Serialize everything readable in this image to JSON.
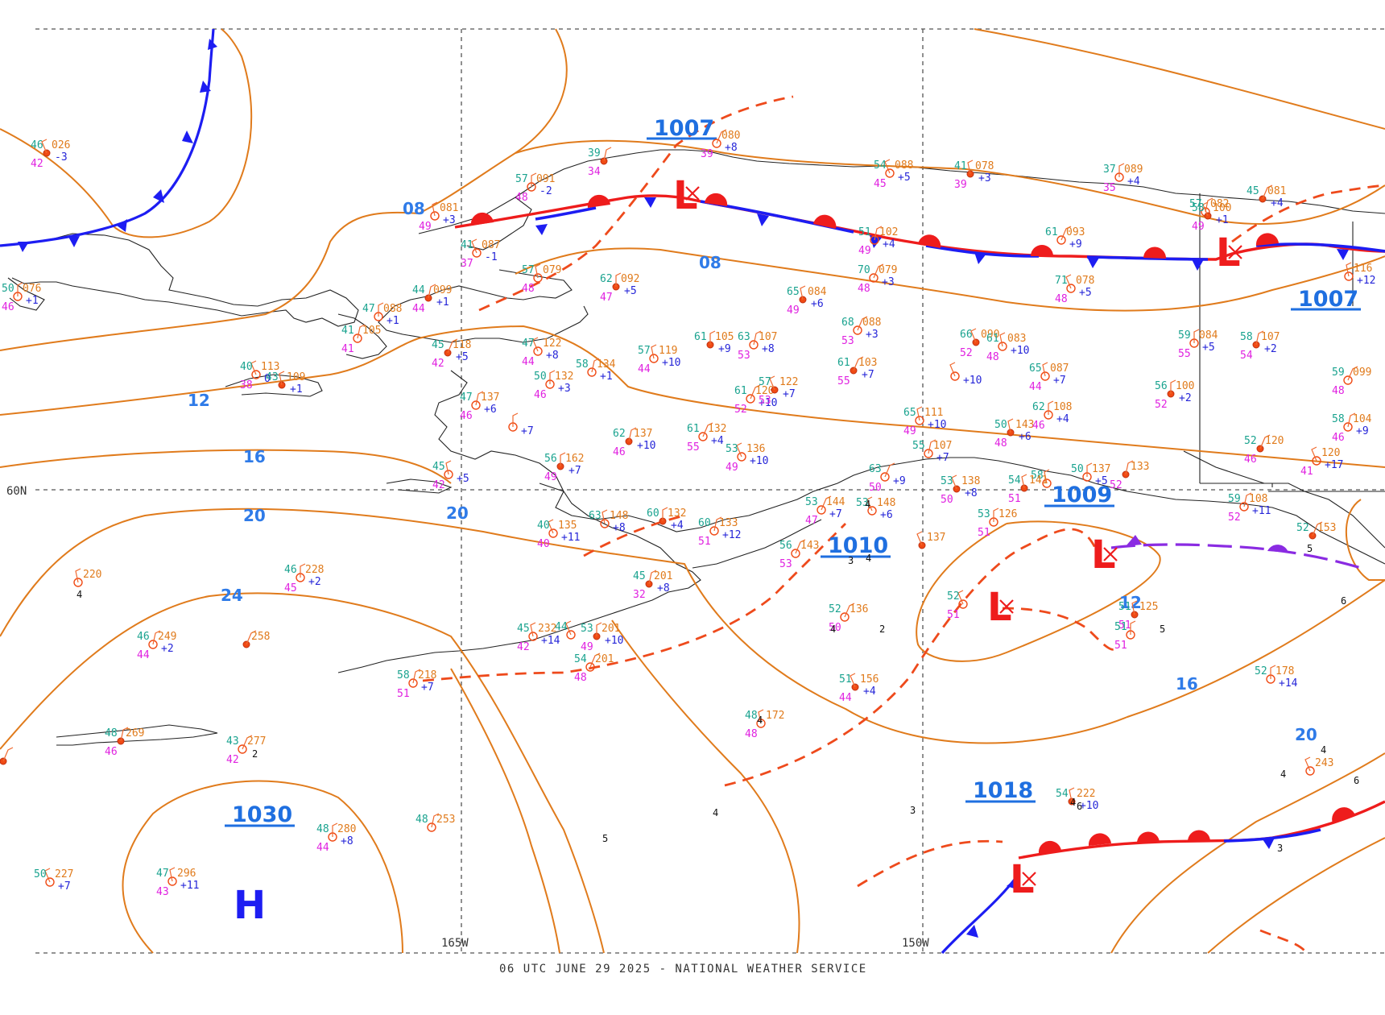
{
  "footer": "06 UTC JUNE 29 2025 - NATIONAL WEATHER SERVICE",
  "axes": {
    "lat_60n": "60N",
    "lon_165w": "165W",
    "lon_150w": "150W"
  },
  "colors": {
    "isobar": "#e07b1c",
    "cold_front": "#1d1df2",
    "warm_front": "#ee1c1c",
    "trough": "#ee4a1c",
    "occluded_front": "#8a2be2",
    "isobar_label": "#2f7be8"
  },
  "isobar_labels": {
    "i08a": "08",
    "i08b": "08",
    "i12a": "12",
    "i12b": "12",
    "i16a": "16",
    "i16b": "16",
    "i20a": "20",
    "i20b": "20",
    "i20c": "20",
    "i24": "24"
  },
  "pressure_centers": {
    "c1007a": "1007",
    "c1007b": "1007",
    "c1009": "1009",
    "c1010": "1010",
    "c1018": "1018",
    "c1030": "1030"
  },
  "highs": {
    "h1": "H"
  },
  "lows": {
    "l1": "L",
    "l2": "L",
    "l3": "L",
    "l4": "L",
    "l5": "L"
  },
  "stations": [
    {
      "t": "46",
      "p": "026",
      "d": "42",
      "c": "-3"
    },
    {
      "t": "",
      "p": "081",
      "d": "49",
      "c": "+3"
    },
    {
      "t": "57",
      "p": "091",
      "d": "48",
      "c": "-2"
    },
    {
      "t": "39",
      "p": "",
      "d": "34",
      "c": ""
    },
    {
      "t": "",
      "p": "080",
      "d": "39",
      "c": "+8"
    },
    {
      "t": "54",
      "p": "088",
      "d": "45",
      "c": "+5"
    },
    {
      "t": "41",
      "p": "078",
      "d": "39",
      "c": "+3"
    },
    {
      "t": "37",
      "p": "089",
      "d": "35",
      "c": "+4"
    },
    {
      "t": "57",
      "p": "082",
      "d": "",
      "c": ""
    },
    {
      "t": "45",
      "p": "081",
      "d": "",
      "c": "+4"
    },
    {
      "t": "41",
      "p": "087",
      "d": "37",
      "c": "-1"
    },
    {
      "t": "57",
      "p": "079",
      "d": "48",
      "c": ""
    },
    {
      "t": "62",
      "p": "092",
      "d": "47",
      "c": "+5"
    },
    {
      "t": "51",
      "p": "102",
      "d": "49",
      "c": "+4"
    },
    {
      "t": "61",
      "p": "093",
      "d": "",
      "c": "+9"
    },
    {
      "t": "58",
      "p": "100",
      "d": "49",
      "c": "+1"
    },
    {
      "t": "",
      "p": "116",
      "d": "",
      "c": "+12"
    },
    {
      "t": "50",
      "p": "076",
      "d": "46",
      "c": "+1"
    },
    {
      "t": "44",
      "p": "099",
      "d": "44",
      "c": "+1"
    },
    {
      "t": "70",
      "p": "079",
      "d": "48",
      "c": "+3"
    },
    {
      "t": "71",
      "p": "078",
      "d": "48",
      "c": "+5"
    },
    {
      "t": "65",
      "p": "084",
      "d": "49",
      "c": "+6"
    },
    {
      "t": "47",
      "p": "088",
      "d": "",
      "c": "+1"
    },
    {
      "t": "41",
      "p": "105",
      "d": "41",
      "c": ""
    },
    {
      "t": "45",
      "p": "118",
      "d": "42",
      "c": "+5"
    },
    {
      "t": "47",
      "p": "122",
      "d": "44",
      "c": "+8"
    },
    {
      "t": "57",
      "p": "119",
      "d": "44",
      "c": "+10"
    },
    {
      "t": "61",
      "p": "105",
      "d": "",
      "c": "+9"
    },
    {
      "t": "63",
      "p": "107",
      "d": "53",
      "c": "+8"
    },
    {
      "t": "68",
      "p": "088",
      "d": "53",
      "c": "+3"
    },
    {
      "t": "66",
      "p": "090",
      "d": "52",
      "c": ""
    },
    {
      "t": "61",
      "p": "083",
      "d": "48",
      "c": "+10"
    },
    {
      "t": "59",
      "p": "084",
      "d": "55",
      "c": "+5"
    },
    {
      "t": "58",
      "p": "107",
      "d": "54",
      "c": "+2"
    },
    {
      "t": "59",
      "p": "099",
      "d": "48",
      "c": ""
    },
    {
      "t": "40",
      "p": "113",
      "d": "38",
      "c": "0"
    },
    {
      "t": "43",
      "p": "109",
      "d": "",
      "c": "+1"
    },
    {
      "t": "50",
      "p": "132",
      "d": "46",
      "c": "+3"
    },
    {
      "t": "58",
      "p": "134",
      "d": "",
      "c": "+1"
    },
    {
      "t": "61",
      "p": "103",
      "d": "55",
      "c": "+7"
    },
    {
      "t": "",
      "p": "",
      "d": "",
      "c": "+10"
    },
    {
      "t": "65",
      "p": "087",
      "d": "44",
      "c": "+7"
    },
    {
      "t": "56",
      "p": "100",
      "d": "52",
      "c": "+2"
    },
    {
      "t": "47",
      "p": "137",
      "d": "46",
      "c": "+6"
    },
    {
      "t": "61",
      "p": "120",
      "d": "52",
      "c": "+10"
    },
    {
      "t": "57",
      "p": "122",
      "d": "53",
      "c": "+7"
    },
    {
      "t": "65",
      "p": "111",
      "d": "49",
      "c": "+10"
    },
    {
      "t": "",
      "p": "",
      "d": "",
      "c": "+7"
    },
    {
      "t": "62",
      "p": "137",
      "d": "46",
      "c": "+10"
    },
    {
      "t": "61",
      "p": "132",
      "d": "55",
      "c": "+4"
    },
    {
      "t": "53",
      "p": "136",
      "d": "49",
      "c": "+10"
    },
    {
      "t": "50",
      "p": "143",
      "d": "48",
      "c": "+6"
    },
    {
      "t": "62",
      "p": "108",
      "d": "46",
      "c": "+4"
    },
    {
      "t": "58",
      "p": "104",
      "d": "46",
      "c": "+9"
    },
    {
      "t": "52",
      "p": "120",
      "d": "46",
      "c": ""
    },
    {
      "t": "",
      "p": "120",
      "d": "41",
      "c": "+17"
    },
    {
      "t": "45",
      "p": "",
      "d": "42",
      "c": "+5"
    },
    {
      "t": "56",
      "p": "162",
      "d": "49",
      "c": "+7"
    },
    {
      "t": "55",
      "p": "107",
      "d": "",
      "c": "+7"
    },
    {
      "t": "63",
      "p": "",
      "d": "50",
      "c": "+9"
    },
    {
      "t": "53",
      "p": "138",
      "d": "50",
      "c": "+8"
    },
    {
      "t": "58",
      "p": "",
      "d": "",
      "c": ""
    },
    {
      "t": "50",
      "p": "137",
      "d": "",
      "c": "+5"
    },
    {
      "t": "",
      "p": "133",
      "d": "52",
      "c": ""
    },
    {
      "t": "53",
      "p": "144",
      "d": "47",
      "c": "+7"
    },
    {
      "t": "53",
      "p": "148",
      "d": "",
      "c": "+6"
    },
    {
      "t": "54",
      "p": "141",
      "d": "51",
      "c": ""
    },
    {
      "t": "53",
      "p": "126",
      "d": "51",
      "c": ""
    },
    {
      "t": "59",
      "p": "108",
      "d": "52",
      "c": "+11"
    },
    {
      "t": "52",
      "p": "153",
      "d": "",
      "c": ""
    },
    {
      "t": "40",
      "p": "135",
      "d": "40",
      "c": "+11"
    },
    {
      "t": "63",
      "p": "148",
      "d": "",
      "c": "+8"
    },
    {
      "t": "60",
      "p": "132",
      "d": "",
      "c": "+4"
    },
    {
      "t": "60",
      "p": "133",
      "d": "51",
      "c": "+12"
    },
    {
      "t": "56",
      "p": "143",
      "d": "53",
      "c": ""
    },
    {
      "t": "",
      "p": "137",
      "d": "",
      "c": ""
    },
    {
      "t": "",
      "p": "220",
      "d": "",
      "c": ""
    },
    {
      "t": "46",
      "p": "228",
      "d": "45",
      "c": "+2"
    },
    {
      "t": "45",
      "p": "201",
      "d": "32",
      "c": "+8"
    },
    {
      "t": "52",
      "p": "136",
      "d": "50",
      "c": ""
    },
    {
      "t": "52",
      "p": "",
      "d": "51",
      "c": ""
    },
    {
      "t": "51",
      "p": "125",
      "d": "51",
      "c": ""
    },
    {
      "t": "51",
      "p": "",
      "d": "51",
      "c": ""
    },
    {
      "t": "46",
      "p": "249",
      "d": "44",
      "c": "+2"
    },
    {
      "t": "",
      "p": "258",
      "d": "",
      "c": ""
    },
    {
      "t": "44",
      "p": "",
      "d": "",
      "c": ""
    },
    {
      "t": "45",
      "p": "232",
      "d": "42",
      "c": "+14"
    },
    {
      "t": "53",
      "p": "201",
      "d": "49",
      "c": "+10"
    },
    {
      "t": "58",
      "p": "218",
      "d": "51",
      "c": "+7"
    },
    {
      "t": "54",
      "p": "201",
      "d": "48",
      "c": ""
    },
    {
      "t": "51",
      "p": "156",
      "d": "44",
      "c": "+4"
    },
    {
      "t": "48",
      "p": "172",
      "d": "48",
      "c": ""
    },
    {
      "t": "52",
      "p": "178",
      "d": "",
      "c": "+14"
    },
    {
      "t": "48",
      "p": "269",
      "d": "46",
      "c": ""
    },
    {
      "t": "43",
      "p": "277",
      "d": "42",
      "c": ""
    },
    {
      "t": "",
      "p": "243",
      "d": "",
      "c": ""
    },
    {
      "t": "54",
      "p": "222",
      "d": "",
      "c": "+10"
    },
    {
      "t": "48",
      "p": "280",
      "d": "44",
      "c": "+8"
    },
    {
      "t": "48",
      "p": "253",
      "d": "",
      "c": ""
    },
    {
      "t": "",
      "p": "",
      "d": "",
      "c": ""
    },
    {
      "t": "50",
      "p": "227",
      "d": "",
      "c": "+7"
    },
    {
      "t": "47",
      "p": "296",
      "d": "43",
      "c": "+11"
    }
  ],
  "station_visibilities": [
    "4",
    "4",
    "3",
    "2",
    "4",
    "4",
    "4",
    "5",
    "4",
    "3",
    "2",
    "3",
    "4",
    "4",
    "5",
    "6",
    "6",
    "6",
    "5",
    "4"
  ]
}
